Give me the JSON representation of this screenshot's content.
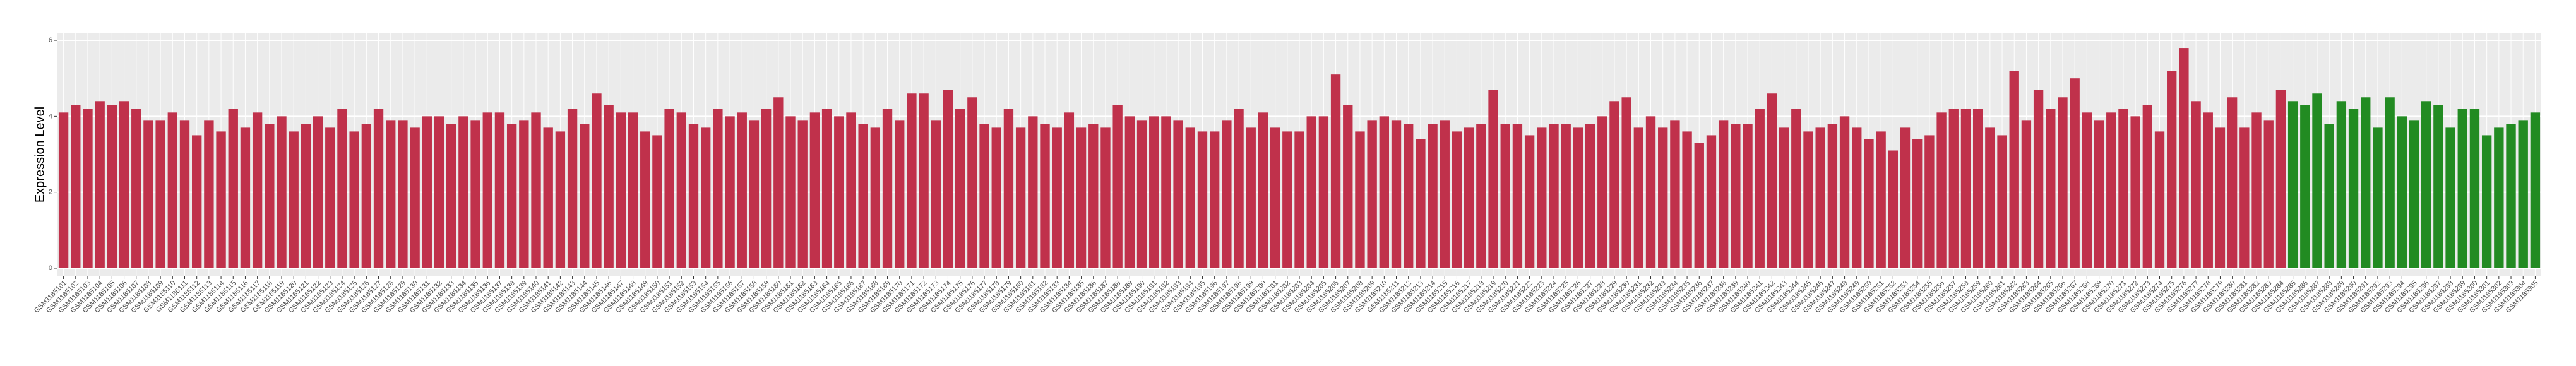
{
  "chart_data": {
    "type": "bar",
    "y_label": "Expression Level",
    "categories": [
      "GSM1185101",
      "GSM1185102",
      "GSM1185103",
      "GSM1185104",
      "GSM1185105",
      "GSM1185106",
      "GSM1185107",
      "GSM1185108",
      "GSM1185109",
      "GSM1185110",
      "GSM1185111",
      "GSM1185112",
      "GSM1185113",
      "GSM1185114",
      "GSM1185115",
      "GSM1185116",
      "GSM1185117",
      "GSM1185118",
      "GSM1185119",
      "GSM1185120",
      "GSM1185121",
      "GSM1185122",
      "GSM1185123",
      "GSM1185124",
      "GSM1185125",
      "GSM1185126",
      "GSM1185127",
      "GSM1185128",
      "GSM1185129",
      "GSM1185130",
      "GSM1185131",
      "GSM1185132",
      "GSM1185133",
      "GSM1185134",
      "GSM1185135",
      "GSM1185136",
      "GSM1185137",
      "GSM1185138",
      "GSM1185139",
      "GSM1185140",
      "GSM1185141",
      "GSM1185142",
      "GSM1185143",
      "GSM1185144",
      "GSM1185145",
      "GSM1185146",
      "GSM1185147",
      "GSM1185148",
      "GSM1185149",
      "GSM1185150",
      "GSM1185151",
      "GSM1185152",
      "GSM1185153",
      "GSM1185154",
      "GSM1185155",
      "GSM1185156",
      "GSM1185157",
      "GSM1185158",
      "GSM1185159",
      "GSM1185160",
      "GSM1185161",
      "GSM1185162",
      "GSM1185163",
      "GSM1185164",
      "GSM1185165",
      "GSM1185166",
      "GSM1185167",
      "GSM1185168",
      "GSM1185169",
      "GSM1185170",
      "GSM1185171",
      "GSM1185172",
      "GSM1185173",
      "GSM1185174",
      "GSM1185175",
      "GSM1185176",
      "GSM1185177",
      "GSM1185178",
      "GSM1185179",
      "GSM1185180",
      "GSM1185181",
      "GSM1185182",
      "GSM1185183",
      "GSM1185184",
      "GSM1185185",
      "GSM1185186",
      "GSM1185187",
      "GSM1185188",
      "GSM1185189",
      "GSM1185190",
      "GSM1185191",
      "GSM1185192",
      "GSM1185193",
      "GSM1185194",
      "GSM1185195",
      "GSM1185196",
      "GSM1185197",
      "GSM1185198",
      "GSM1185199",
      "GSM1185200",
      "GSM1185201",
      "GSM1185202",
      "GSM1185203",
      "GSM1185204",
      "GSM1185205",
      "GSM1185206",
      "GSM1185207",
      "GSM1185208",
      "GSM1185209",
      "GSM1185210",
      "GSM1185211",
      "GSM1185212",
      "GSM1185213",
      "GSM1185214",
      "GSM1185215",
      "GSM1185216",
      "GSM1185217",
      "GSM1185218",
      "GSM1185219",
      "GSM1185220",
      "GSM1185221",
      "GSM1185222",
      "GSM1185223",
      "GSM1185224",
      "GSM1185225",
      "GSM1185226",
      "GSM1185227",
      "GSM1185228",
      "GSM1185229",
      "GSM1185230",
      "GSM1185231",
      "GSM1185232",
      "GSM1185233",
      "GSM1185234",
      "GSM1185235",
      "GSM1185236",
      "GSM1185237",
      "GSM1185238",
      "GSM1185239",
      "GSM1185240",
      "GSM1185241",
      "GSM1185242",
      "GSM1185243",
      "GSM1185244",
      "GSM1185245",
      "GSM1185246",
      "GSM1185247",
      "GSM1185248",
      "GSM1185249",
      "GSM1185250",
      "GSM1185251",
      "GSM1185252",
      "GSM1185253",
      "GSM1185254",
      "GSM1185255",
      "GSM1185256",
      "GSM1185257",
      "GSM1185258",
      "GSM1185259",
      "GSM1185260",
      "GSM1185261",
      "GSM1185262",
      "GSM1185263",
      "GSM1185264",
      "GSM1185265",
      "GSM1185266",
      "GSM1185267",
      "GSM1185268",
      "GSM1185269",
      "GSM1185270",
      "GSM1185271",
      "GSM1185272",
      "GSM1185273",
      "GSM1185274",
      "GSM1185275",
      "GSM1185276",
      "GSM1185277",
      "GSM1185278",
      "GSM1185279",
      "GSM1185280",
      "GSM1185281",
      "GSM1185282",
      "GSM1185283",
      "GSM1185284",
      "GSM1185285",
      "GSM1185286",
      "GSM1185287",
      "GSM1185288",
      "GSM1185289",
      "GSM1185290",
      "GSM1185291",
      "GSM1185292",
      "GSM1185293",
      "GSM1185294",
      "GSM1185295",
      "GSM1185296",
      "GSM1185297",
      "GSM1185298",
      "GSM1185299",
      "GSM1185300",
      "GSM1185301",
      "GSM1185302",
      "GSM1185303",
      "GSM1185304",
      "GSM1185305"
    ],
    "values": [
      4.1,
      4.3,
      4.2,
      4.4,
      4.3,
      4.4,
      4.2,
      3.9,
      3.9,
      4.1,
      3.9,
      3.5,
      3.9,
      3.6,
      4.2,
      3.7,
      4.1,
      3.8,
      4.0,
      3.6,
      3.8,
      4.0,
      3.7,
      4.2,
      3.6,
      3.8,
      4.2,
      3.9,
      3.9,
      3.7,
      4.0,
      4.0,
      3.8,
      4.0,
      3.9,
      4.1,
      4.1,
      3.8,
      3.9,
      4.1,
      3.7,
      3.6,
      4.2,
      3.8,
      4.6,
      4.3,
      4.1,
      4.1,
      3.6,
      3.5,
      4.2,
      4.1,
      3.8,
      3.7,
      4.2,
      4.0,
      4.1,
      3.9,
      4.2,
      4.5,
      4.0,
      3.9,
      4.1,
      4.2,
      4.0,
      4.1,
      3.8,
      3.7,
      4.2,
      3.9,
      4.6,
      4.6,
      3.9,
      4.7,
      4.2,
      4.5,
      3.8,
      3.7,
      4.2,
      3.7,
      4.0,
      3.8,
      3.7,
      4.1,
      3.7,
      3.8,
      3.7,
      4.3,
      4.0,
      3.9,
      4.0,
      4.0,
      3.9,
      3.7,
      3.6,
      3.6,
      3.9,
      4.2,
      3.7,
      4.1,
      3.7,
      3.6,
      3.6,
      4.0,
      4.0,
      5.1,
      4.3,
      3.6,
      3.9,
      4.0,
      3.9,
      3.8,
      3.4,
      3.8,
      3.9,
      3.6,
      3.7,
      3.8,
      4.7,
      3.8,
      3.8,
      3.5,
      3.7,
      3.8,
      3.8,
      3.7,
      3.8,
      4.0,
      4.4,
      4.5,
      3.7,
      4.0,
      3.7,
      3.9,
      3.6,
      3.3,
      3.5,
      3.9,
      3.8,
      3.8,
      4.2,
      4.6,
      3.7,
      4.2,
      3.6,
      3.7,
      3.8,
      4.0,
      3.7,
      3.4,
      3.6,
      3.1,
      3.7,
      3.4,
      3.5,
      4.1,
      4.2,
      4.2,
      4.2,
      3.7,
      3.5,
      5.2,
      3.9,
      4.7,
      4.2,
      4.5,
      5.0,
      4.1,
      3.9,
      4.1,
      4.2,
      4.0,
      4.3,
      3.6,
      5.2,
      5.8,
      4.4,
      4.1,
      3.7,
      4.5,
      3.7,
      4.1,
      3.9,
      4.7,
      4.4,
      4.3,
      4.6,
      3.8,
      4.4,
      4.2,
      4.5,
      3.7,
      4.5,
      4.0,
      3.9,
      4.4,
      4.3,
      3.7,
      4.2,
      4.2,
      3.5,
      3.7,
      3.8,
      3.9,
      4.1
    ],
    "colors": [
      "#c0314b",
      "#c0314b",
      "#c0314b",
      "#c0314b",
      "#c0314b",
      "#c0314b",
      "#c0314b",
      "#c0314b",
      "#c0314b",
      "#c0314b",
      "#c0314b",
      "#c0314b",
      "#c0314b",
      "#c0314b",
      "#c0314b",
      "#c0314b",
      "#c0314b",
      "#c0314b",
      "#c0314b",
      "#c0314b",
      "#c0314b",
      "#c0314b",
      "#c0314b",
      "#c0314b",
      "#c0314b",
      "#c0314b",
      "#c0314b",
      "#c0314b",
      "#c0314b",
      "#c0314b",
      "#c0314b",
      "#c0314b",
      "#c0314b",
      "#c0314b",
      "#c0314b",
      "#c0314b",
      "#c0314b",
      "#c0314b",
      "#c0314b",
      "#c0314b",
      "#c0314b",
      "#c0314b",
      "#c0314b",
      "#c0314b",
      "#c0314b",
      "#c0314b",
      "#c0314b",
      "#c0314b",
      "#c0314b",
      "#c0314b",
      "#c0314b",
      "#c0314b",
      "#c0314b",
      "#c0314b",
      "#c0314b",
      "#c0314b",
      "#c0314b",
      "#c0314b",
      "#c0314b",
      "#c0314b",
      "#c0314b",
      "#c0314b",
      "#c0314b",
      "#c0314b",
      "#c0314b",
      "#c0314b",
      "#c0314b",
      "#c0314b",
      "#c0314b",
      "#c0314b",
      "#c0314b",
      "#c0314b",
      "#c0314b",
      "#c0314b",
      "#c0314b",
      "#c0314b",
      "#c0314b",
      "#c0314b",
      "#c0314b",
      "#c0314b",
      "#c0314b",
      "#c0314b",
      "#c0314b",
      "#c0314b",
      "#c0314b",
      "#c0314b",
      "#c0314b",
      "#c0314b",
      "#c0314b",
      "#c0314b",
      "#c0314b",
      "#c0314b",
      "#c0314b",
      "#c0314b",
      "#c0314b",
      "#c0314b",
      "#c0314b",
      "#c0314b",
      "#c0314b",
      "#c0314b",
      "#c0314b",
      "#c0314b",
      "#c0314b",
      "#c0314b",
      "#c0314b",
      "#c0314b",
      "#c0314b",
      "#c0314b",
      "#c0314b",
      "#c0314b",
      "#c0314b",
      "#c0314b",
      "#c0314b",
      "#c0314b",
      "#c0314b",
      "#c0314b",
      "#c0314b",
      "#c0314b",
      "#c0314b",
      "#c0314b",
      "#c0314b",
      "#c0314b",
      "#c0314b",
      "#c0314b",
      "#c0314b",
      "#c0314b",
      "#c0314b",
      "#c0314b",
      "#c0314b",
      "#c0314b",
      "#c0314b",
      "#c0314b",
      "#c0314b",
      "#c0314b",
      "#c0314b",
      "#c0314b",
      "#c0314b",
      "#c0314b",
      "#c0314b",
      "#c0314b",
      "#c0314b",
      "#c0314b",
      "#c0314b",
      "#c0314b",
      "#c0314b",
      "#c0314b",
      "#c0314b",
      "#c0314b",
      "#c0314b",
      "#c0314b",
      "#c0314b",
      "#c0314b",
      "#c0314b",
      "#c0314b",
      "#c0314b",
      "#c0314b",
      "#c0314b",
      "#c0314b",
      "#c0314b",
      "#c0314b",
      "#c0314b",
      "#c0314b",
      "#c0314b",
      "#c0314b",
      "#c0314b",
      "#c0314b",
      "#c0314b",
      "#c0314b",
      "#c0314b",
      "#c0314b",
      "#c0314b",
      "#c0314b",
      "#c0314b",
      "#c0314b",
      "#c0314b",
      "#c0314b",
      "#c0314b",
      "#c0314b",
      "#c0314b",
      "#c0314b",
      "#c0314b",
      "#c0314b",
      "#c0314b",
      "#c0314b",
      "#228b22",
      "#228b22",
      "#228b22",
      "#228b22",
      "#228b22",
      "#228b22",
      "#228b22",
      "#228b22",
      "#228b22",
      "#228b22",
      "#228b22",
      "#228b22",
      "#228b22",
      "#228b22",
      "#228b22",
      "#228b22",
      "#228b22",
      "#228b22",
      "#228b22",
      "#228b22",
      "#228b22"
    ],
    "ylim": [
      -0.2,
      6.2
    ],
    "yticks": [
      0,
      2,
      4,
      6
    ],
    "grid": true
  }
}
